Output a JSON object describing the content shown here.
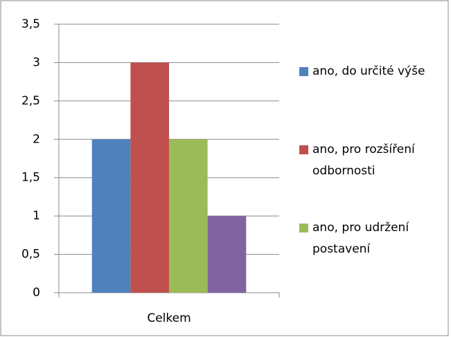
{
  "chart_data": {
    "type": "bar",
    "categories": [
      "Celkem"
    ],
    "series": [
      {
        "name": "ano, do určité výše",
        "color": "#4f81bd",
        "values": [
          2
        ]
      },
      {
        "name": "ano, pro rozšíření odbornosti",
        "color": "#c0504d",
        "values": [
          3
        ]
      },
      {
        "name": "ano, pro udržení postavení",
        "color": "#9bbb59",
        "values": [
          2
        ]
      },
      {
        "color": "#8064a2",
        "values": [
          1
        ]
      }
    ],
    "ylim": [
      0,
      3.5
    ],
    "yticks": [
      0,
      {
        "value": 0.5,
        "label": "0,5"
      },
      1,
      {
        "value": 1.5,
        "label": "1,5"
      },
      2,
      {
        "value": 2.5,
        "label": "2,5"
      },
      3,
      {
        "value": 3.5,
        "label": "3,5"
      }
    ],
    "grid": true
  }
}
